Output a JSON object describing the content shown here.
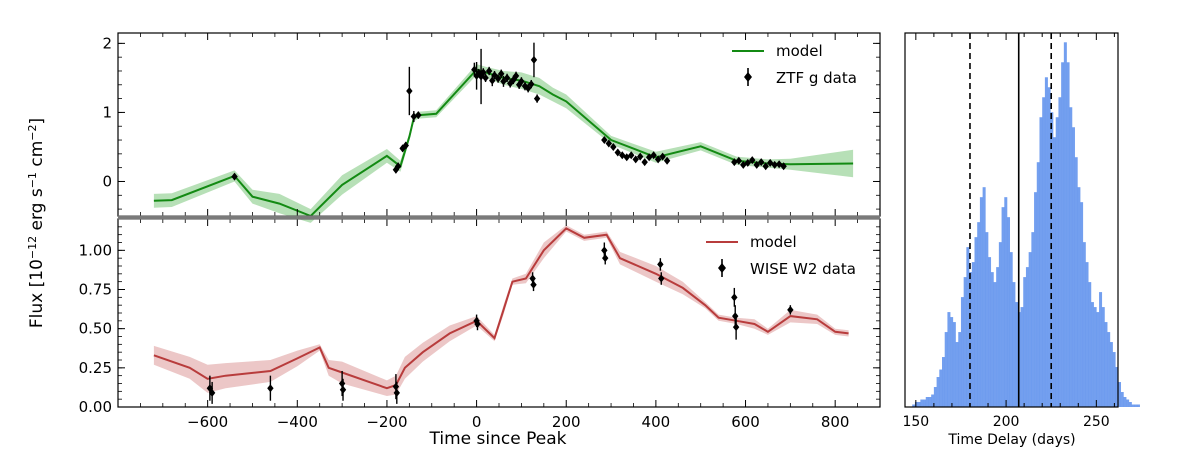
{
  "colors": {
    "green": "#138a13",
    "green_band": "#9fd59f",
    "red": "#b83c3c",
    "red_band": "#e6b4b4",
    "blue": "#6495ed",
    "black": "#000000",
    "divider": "#7a7a7a"
  },
  "chart_data": [
    {
      "type": "line",
      "name": "top",
      "series": [
        {
          "name": "model",
          "x": [
            -720,
            -680,
            -540,
            -500,
            -440,
            -370,
            -300,
            -200,
            -170,
            -150,
            -140,
            -130,
            -90,
            0,
            20,
            60,
            100,
            140,
            170,
            200,
            300,
            400,
            500,
            580,
            650,
            700,
            840
          ],
          "y": [
            -0.28,
            -0.27,
            0.08,
            -0.22,
            -0.32,
            -0.5,
            -0.05,
            0.37,
            0.22,
            0.65,
            0.92,
            0.96,
            0.98,
            1.62,
            1.58,
            1.5,
            1.46,
            1.38,
            1.26,
            1.16,
            0.6,
            0.35,
            0.51,
            0.3,
            0.26,
            0.25,
            0.26
          ],
          "band": [
            0.1,
            0.1,
            0.08,
            0.1,
            0.14,
            0.1,
            0.14,
            0.1,
            0.08,
            0.05,
            0.05,
            0.05,
            0.05,
            0.08,
            0.08,
            0.1,
            0.12,
            0.12,
            0.1,
            0.1,
            0.06,
            0.08,
            0.06,
            0.06,
            0.06,
            0.08,
            0.2
          ]
        },
        {
          "name": "ZTF g data",
          "points": [
            [
              -540,
              0.07,
              0.03
            ],
            [
              -180,
              0.17,
              0.05
            ],
            [
              -175,
              0.22,
              0.05
            ],
            [
              -165,
              0.48,
              0.05
            ],
            [
              -158,
              0.52,
              0.05
            ],
            [
              -150,
              1.31,
              0.35
            ],
            [
              -140,
              0.94,
              0.08
            ],
            [
              -130,
              0.96,
              0.05
            ],
            [
              -5,
              1.62,
              0.1
            ],
            [
              0,
              1.53,
              0.2
            ],
            [
              5,
              1.57,
              0.06
            ],
            [
              10,
              1.52,
              0.4
            ],
            [
              15,
              1.58,
              0.06
            ],
            [
              20,
              1.5,
              0.06
            ],
            [
              28,
              1.6,
              0.06
            ],
            [
              35,
              1.46,
              0.08
            ],
            [
              40,
              1.54,
              0.06
            ],
            [
              48,
              1.49,
              0.06
            ],
            [
              55,
              1.56,
              0.06
            ],
            [
              60,
              1.45,
              0.08
            ],
            [
              68,
              1.5,
              0.06
            ],
            [
              75,
              1.42,
              0.06
            ],
            [
              82,
              1.47,
              0.06
            ],
            [
              88,
              1.53,
              0.06
            ],
            [
              95,
              1.4,
              0.06
            ],
            [
              100,
              1.45,
              0.06
            ],
            [
              108,
              1.38,
              0.06
            ],
            [
              115,
              1.35,
              0.06
            ],
            [
              122,
              1.41,
              0.06
            ],
            [
              128,
              1.76,
              0.25
            ],
            [
              135,
              1.2,
              0.06
            ],
            [
              285,
              0.6,
              0.03
            ],
            [
              295,
              0.55,
              0.03
            ],
            [
              305,
              0.5,
              0.03
            ],
            [
              315,
              0.42,
              0.03
            ],
            [
              325,
              0.38,
              0.03
            ],
            [
              335,
              0.35,
              0.03
            ],
            [
              345,
              0.38,
              0.03
            ],
            [
              355,
              0.32,
              0.03
            ],
            [
              365,
              0.36,
              0.03
            ],
            [
              375,
              0.28,
              0.03
            ],
            [
              385,
              0.35,
              0.03
            ],
            [
              395,
              0.38,
              0.03
            ],
            [
              405,
              0.32,
              0.03
            ],
            [
              415,
              0.36,
              0.03
            ],
            [
              425,
              0.3,
              0.03
            ],
            [
              575,
              0.28,
              0.03
            ],
            [
              585,
              0.3,
              0.03
            ],
            [
              595,
              0.24,
              0.03
            ],
            [
              605,
              0.27,
              0.03
            ],
            [
              615,
              0.31,
              0.03
            ],
            [
              625,
              0.24,
              0.03
            ],
            [
              635,
              0.28,
              0.03
            ],
            [
              645,
              0.22,
              0.03
            ],
            [
              655,
              0.27,
              0.03
            ],
            [
              665,
              0.24,
              0.03
            ],
            [
              675,
              0.25,
              0.03
            ],
            [
              685,
              0.22,
              0.03
            ]
          ]
        }
      ],
      "xlim": [
        -800,
        900
      ],
      "ylim": [
        -0.5,
        2.15
      ],
      "yticks": [
        0,
        1,
        2
      ],
      "ytick_labels": [
        "0",
        "1",
        "2"
      ],
      "legend": [
        "model",
        "ZTF g data"
      ],
      "legend_position": "top-right"
    },
    {
      "type": "line",
      "name": "bottom",
      "series": [
        {
          "name": "model",
          "x": [
            -720,
            -640,
            -600,
            -560,
            -460,
            -400,
            -350,
            -330,
            -300,
            -200,
            -180,
            -160,
            -120,
            -60,
            0,
            40,
            60,
            80,
            110,
            150,
            200,
            240,
            290,
            320,
            400,
            460,
            510,
            540,
            580,
            620,
            650,
            700,
            760,
            800,
            830
          ],
          "y": [
            0.33,
            0.25,
            0.18,
            0.2,
            0.23,
            0.31,
            0.38,
            0.25,
            0.22,
            0.12,
            0.14,
            0.25,
            0.35,
            0.47,
            0.55,
            0.44,
            0.62,
            0.8,
            0.82,
            1.0,
            1.14,
            1.08,
            1.1,
            0.95,
            0.85,
            0.76,
            0.65,
            0.57,
            0.55,
            0.53,
            0.48,
            0.58,
            0.56,
            0.48,
            0.47
          ],
          "band": [
            0.06,
            0.07,
            0.09,
            0.08,
            0.07,
            0.05,
            0.02,
            0.05,
            0.07,
            0.05,
            0.06,
            0.07,
            0.06,
            0.05,
            0.03,
            0.02,
            0.03,
            0.02,
            0.03,
            0.05,
            0.02,
            0.02,
            0.02,
            0.04,
            0.05,
            0.04,
            0.02,
            0.02,
            0.02,
            0.03,
            0.02,
            0.04,
            0.03,
            0.02,
            0.02
          ]
        },
        {
          "name": "WISE W2 data",
          "points": [
            [
              -595,
              0.12,
              0.08
            ],
            [
              -590,
              0.09,
              0.07
            ],
            [
              -460,
              0.12,
              0.08
            ],
            [
              -300,
              0.15,
              0.08
            ],
            [
              -298,
              0.11,
              0.07
            ],
            [
              -180,
              0.13,
              0.08
            ],
            [
              -178,
              0.09,
              0.07
            ],
            [
              0,
              0.55,
              0.04
            ],
            [
              2,
              0.53,
              0.04
            ],
            [
              125,
              0.82,
              0.04
            ],
            [
              127,
              0.78,
              0.04
            ],
            [
              285,
              1.0,
              0.05
            ],
            [
              287,
              0.95,
              0.04
            ],
            [
              410,
              0.91,
              0.04
            ],
            [
              412,
              0.82,
              0.04
            ],
            [
              575,
              0.7,
              0.06
            ],
            [
              577,
              0.58,
              0.07
            ],
            [
              579,
              0.51,
              0.08
            ],
            [
              700,
              0.62,
              0.03
            ]
          ]
        }
      ],
      "xlim": [
        -800,
        900
      ],
      "ylim": [
        0,
        1.2
      ],
      "yticks": [
        0,
        0.25,
        0.5,
        0.75,
        1.0
      ],
      "ytick_labels": [
        "0.00",
        "0.25",
        "0.50",
        "0.75",
        "1.00"
      ],
      "xticks": [
        -600,
        -400,
        -200,
        0,
        200,
        400,
        600,
        800
      ],
      "xtick_labels": [
        "−600",
        "−400",
        "−200",
        "0",
        "200",
        "400",
        "600",
        "800"
      ],
      "legend": [
        "model",
        "WISE W2 data"
      ],
      "legend_position": "top-right"
    },
    {
      "type": "bar",
      "name": "histogram",
      "bin_start": 148,
      "bin_width": 1.5,
      "counts": [
        1,
        2,
        2,
        3,
        3,
        4,
        4,
        5,
        8,
        12,
        15,
        20,
        30,
        38,
        36,
        34,
        26,
        30,
        44,
        52,
        64,
        54,
        58,
        68,
        74,
        84,
        88,
        70,
        60,
        54,
        50,
        56,
        66,
        80,
        84,
        76,
        62,
        50,
        42,
        38,
        40,
        52,
        56,
        62,
        70,
        86,
        98,
        116,
        124,
        132,
        128,
        118,
        108,
        116,
        124,
        138,
        146,
        138,
        120,
        112,
        100,
        88,
        82,
        66,
        58,
        50,
        42,
        40,
        38,
        46,
        40,
        34,
        30,
        26,
        22,
        16,
        10,
        6,
        4,
        3,
        2,
        1,
        1,
        1
      ],
      "lines": [
        {
          "x": 180,
          "style": "dashed"
        },
        {
          "x": 207,
          "style": "solid"
        },
        {
          "x": 225,
          "style": "dashed"
        }
      ],
      "xlim": [
        144,
        262
      ],
      "xticks": [
        150,
        200,
        250
      ],
      "xtick_labels": [
        "150",
        "200",
        "250"
      ],
      "xlabel": "Time Delay (days)"
    }
  ],
  "labels": {
    "xlabel": "Time since Peak",
    "ylabel": "Flux [10",
    "ylabel_exp1": "−12",
    "ylabel_mid": " erg s",
    "ylabel_exp2": "−1",
    "ylabel_mid2": " cm",
    "ylabel_exp3": "−2",
    "ylabel_end": "]",
    "legend_top_model": "model",
    "legend_top_data": "ZTF g data",
    "legend_bot_model": "model",
    "legend_bot_data": "WISE W2 data",
    "hist_xlabel": "Time Delay (days)"
  }
}
